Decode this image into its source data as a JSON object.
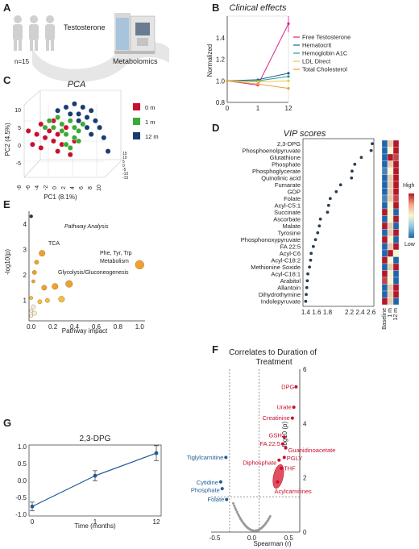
{
  "colors": {
    "red": "#c8102e",
    "blue": "#1f5a96",
    "orange": "#f0a030",
    "green": "#3aaa35",
    "navy": "#1a3c6e",
    "grey": "#9a9a9a",
    "magenta": "#e0218a",
    "teal": "#2a9d8f",
    "yellow": "#e8c840"
  },
  "panel_a": {
    "letter": "A",
    "icon_names": [
      "people-icon",
      "ms-instrument-icon"
    ],
    "n_label": "n=15",
    "treatment_label": "Testosterone",
    "method_label": "Metabolomics"
  },
  "panels": {
    "b": {
      "letter": "B"
    },
    "c": {
      "letter": "C"
    },
    "d": {
      "letter": "D"
    },
    "e": {
      "letter": "E"
    },
    "f": {
      "letter": "F"
    },
    "g": {
      "letter": "G"
    }
  },
  "chart_data": [
    {
      "id": "B",
      "type": "line",
      "title": "Clinical effects",
      "ylabel": "Normalized",
      "xlabel": "",
      "x": [
        0,
        1,
        12
      ],
      "x_ticks": [
        "0",
        "1",
        "12"
      ],
      "ylim": [
        0.8,
        1.6
      ],
      "y_ticks": [
        "0.8",
        "1.0",
        "1.2",
        "1.4"
      ],
      "legend_position": "right",
      "series": [
        {
          "name": "Free Testosterone",
          "color": "#e0218a",
          "values": [
            1.0,
            0.96,
            1.53
          ]
        },
        {
          "name": "Hematocrit",
          "color": "#1f5a96",
          "values": [
            1.0,
            1.01,
            1.07
          ]
        },
        {
          "name": "Hemoglobin A1C",
          "color": "#2a9d8f",
          "values": [
            1.0,
            1.0,
            1.04
          ]
        },
        {
          "name": "LDL Direct",
          "color": "#e8c840",
          "values": [
            1.0,
            0.99,
            1.0
          ]
        },
        {
          "name": "Total Cholesterol",
          "color": "#f0a030",
          "values": [
            1.0,
            0.97,
            0.93
          ]
        }
      ]
    },
    {
      "id": "C",
      "type": "scatter",
      "title": "PCA",
      "xlabel": "PC1 (8.1%)",
      "ylabel": "PC2 (4.5%)",
      "x_ticks": [
        "-8",
        "-6",
        "-4",
        "-2",
        "0",
        "2",
        "4",
        "6",
        "8",
        "10"
      ],
      "y_ticks": [
        "-5",
        "0",
        "5",
        "10"
      ],
      "z_ticks": [
        "-15",
        "-10",
        "-5",
        "0",
        "5",
        "10",
        "15"
      ],
      "legend_position": "right",
      "series": [
        {
          "name": "0 m",
          "color": "#c8102e",
          "points": [
            [
              -9,
              3
            ],
            [
              -7,
              2
            ],
            [
              -6,
              5
            ],
            [
              -5,
              1
            ],
            [
              -4,
              3
            ],
            [
              -3,
              0
            ],
            [
              -3,
              6
            ],
            [
              -2,
              2
            ],
            [
              -1,
              -1
            ],
            [
              -2,
              -3
            ],
            [
              0,
              4
            ],
            [
              1,
              -4
            ],
            [
              -6,
              -2
            ],
            [
              -8,
              -1
            ],
            [
              2,
              0
            ]
          ]
        },
        {
          "name": "1 m",
          "color": "#3aaa35",
          "points": [
            [
              -4,
              6
            ],
            [
              -3,
              4
            ],
            [
              -2,
              7
            ],
            [
              -1,
              5
            ],
            [
              0,
              2
            ],
            [
              1,
              6
            ],
            [
              2,
              4
            ],
            [
              3,
              3
            ],
            [
              -1,
              3
            ],
            [
              0,
              -1
            ],
            [
              2,
              1
            ],
            [
              4,
              5
            ],
            [
              1,
              -2
            ],
            [
              -5,
              4
            ],
            [
              3,
              0
            ]
          ]
        },
        {
          "name": "12 m",
          "color": "#1a3c6e",
          "points": [
            [
              -2,
              9
            ],
            [
              0,
              10
            ],
            [
              2,
              11
            ],
            [
              3,
              8
            ],
            [
              4,
              10
            ],
            [
              5,
              7
            ],
            [
              6,
              9
            ],
            [
              7,
              6
            ],
            [
              5,
              4
            ],
            [
              6,
              2
            ],
            [
              1,
              8
            ],
            [
              8,
              4
            ],
            [
              9,
              1
            ],
            [
              3,
              6
            ],
            [
              10,
              -3
            ]
          ]
        }
      ]
    },
    {
      "id": "D",
      "type": "scatter",
      "title": "VIP scores",
      "xlabel": "",
      "x_ticks": [
        "1.4",
        "1.6",
        "1.8",
        "2.2",
        "2.4",
        "2.6"
      ],
      "xlim": [
        1.35,
        2.65
      ],
      "categories": [
        "2,3-DPG",
        "Phosphoenolpyruvate",
        "Glutathione",
        "Phosphate",
        "Phosphoglycerate",
        "Quinolinic acid",
        "Fumarate",
        "GDP",
        "Folate",
        "Acyl-C5:1",
        "Succinate",
        "Ascorbate",
        "Malate",
        "Tyrosine",
        "Phosphonoxypyruvate",
        "FA 22:5",
        "Acyl-C6",
        "Acyl-C18:2",
        "Methionine Soxide",
        "Acyl-C18:1",
        "Arabitol",
        "Allantoin",
        "Dihydrothymine",
        "Indolepyruvate"
      ],
      "values": [
        2.62,
        2.6,
        2.42,
        2.3,
        2.25,
        2.24,
        2.04,
        1.96,
        1.85,
        1.82,
        1.8,
        1.67,
        1.65,
        1.62,
        1.58,
        1.54,
        1.5,
        1.49,
        1.47,
        1.44,
        1.43,
        1.42,
        1.41,
        1.4
      ],
      "heatmap": {
        "columns": [
          "Baseline",
          "1 m",
          "12 m"
        ],
        "legend_high": "High",
        "legend_low": "Low",
        "levels": [
          [
            0,
            0.6,
            1
          ],
          [
            0,
            0.5,
            1
          ],
          [
            0,
            1,
            0.9
          ],
          [
            0,
            0.6,
            1
          ],
          [
            0.1,
            0.5,
            1
          ],
          [
            0,
            0.6,
            1
          ],
          [
            0,
            0.6,
            1
          ],
          [
            0,
            0.6,
            1
          ],
          [
            0.1,
            0.6,
            0.9
          ],
          [
            0,
            0.5,
            1
          ],
          [
            1,
            0.5,
            0
          ],
          [
            0,
            0.5,
            1
          ],
          [
            1,
            0.6,
            0
          ],
          [
            0,
            0.6,
            1
          ],
          [
            1,
            0.5,
            0
          ],
          [
            0,
            0.6,
            1
          ],
          [
            0,
            1,
            0.5
          ],
          [
            1,
            0.5,
            0
          ],
          [
            0,
            0.6,
            1
          ],
          [
            1,
            0.5,
            0
          ],
          [
            0.9,
            0.5,
            0
          ],
          [
            0,
            0.6,
            1
          ],
          [
            0,
            0.6,
            1
          ],
          [
            1,
            0.6,
            0
          ]
        ]
      }
    },
    {
      "id": "E",
      "type": "scatter",
      "title": "Pathway Analysis",
      "xlabel": "Pathway impact",
      "ylabel": "-log10(p)",
      "x_ticks": [
        "0.0",
        "0.2",
        "0.4",
        "0.6",
        "0.8",
        "1.0"
      ],
      "y_ticks": [
        "1",
        "2",
        "3",
        "4"
      ],
      "xlim": [
        -0.02,
        1.05
      ],
      "ylim": [
        0.2,
        4.5
      ],
      "annotations": [
        "TCA",
        "Phe, Tyr, Trp\nMetabolism",
        "Glycolysis/Gluconeogenesis"
      ],
      "points": [
        {
          "x": 0.0,
          "y": 4.3,
          "size": 2,
          "color": "#333333"
        },
        {
          "x": 0.1,
          "y": 2.85,
          "size": 5,
          "color": "#f0a030"
        },
        {
          "x": 1.0,
          "y": 2.4,
          "size": 8,
          "color": "#f0a030"
        },
        {
          "x": 0.05,
          "y": 2.5,
          "size": 3,
          "color": "#f0a030"
        },
        {
          "x": 0.03,
          "y": 2.1,
          "size": 3,
          "color": "#f0a030"
        },
        {
          "x": 0.35,
          "y": 1.65,
          "size": 6,
          "color": "#f0a030"
        },
        {
          "x": 0.22,
          "y": 1.55,
          "size": 5,
          "color": "#f0a030"
        },
        {
          "x": 0.12,
          "y": 1.5,
          "size": 4,
          "color": "#f0a030"
        },
        {
          "x": 0.02,
          "y": 1.75,
          "size": 2,
          "color": "#f0a030"
        },
        {
          "x": 0.28,
          "y": 1.05,
          "size": 5,
          "color": "#f0c040"
        },
        {
          "x": 0.15,
          "y": 1.0,
          "size": 3,
          "color": "#f0c040"
        },
        {
          "x": 0.08,
          "y": 0.95,
          "size": 3,
          "color": "#f0c040"
        },
        {
          "x": 0.0,
          "y": 1.1,
          "size": 2,
          "color": "#f0c040"
        },
        {
          "x": 0.02,
          "y": 0.75,
          "size": 3,
          "color": "#f5f0e0"
        },
        {
          "x": 0.0,
          "y": 0.6,
          "size": 2,
          "color": "#f5f0e0"
        },
        {
          "x": 0.03,
          "y": 0.5,
          "size": 3,
          "color": "#f5f0e0"
        },
        {
          "x": 0.0,
          "y": 0.4,
          "size": 2,
          "color": "#f5f0e0"
        }
      ]
    },
    {
      "id": "F",
      "type": "scatter",
      "title": "Correlates to Duration of\nTreatment",
      "xlabel": "Spearman (r)",
      "ylabel": "-log10 (p)",
      "x_ticks": [
        "-0.5",
        "0.0",
        "0.5"
      ],
      "y_ticks": [
        "0",
        "2",
        "4",
        "6"
      ],
      "xlim": [
        -0.55,
        0.65
      ],
      "ylim": [
        0,
        6
      ],
      "labeled_points": [
        {
          "label": "DPG",
          "x": 0.6,
          "y": 5.35,
          "color": "#c8102e"
        },
        {
          "label": "Urate",
          "x": 0.57,
          "y": 4.6,
          "color": "#c8102e"
        },
        {
          "label": "Creatinine",
          "x": 0.55,
          "y": 4.2,
          "color": "#c8102e"
        },
        {
          "label": "GSH",
          "x": 0.44,
          "y": 3.5,
          "color": "#c8102e"
        },
        {
          "label": "FA 22:5",
          "x": 0.42,
          "y": 3.25,
          "color": "#c8102e"
        },
        {
          "label": "Guanidinoacetate",
          "x": 0.46,
          "y": 3.1,
          "color": "#c8102e"
        },
        {
          "label": "PGLY",
          "x": 0.44,
          "y": 2.75,
          "color": "#c8102e"
        },
        {
          "label": "Diphosphate",
          "x": 0.37,
          "y": 2.65,
          "color": "#c8102e"
        },
        {
          "label": "THF",
          "x": 0.4,
          "y": 2.35,
          "color": "#c8102e"
        },
        {
          "label": "Acylcarnitines",
          "x": 0.35,
          "y": 1.85,
          "color": "#c8102e"
        },
        {
          "label": "Tiglylcarnitine",
          "x": -0.35,
          "y": 2.75,
          "color": "#1f5a96"
        },
        {
          "label": "Cytidine",
          "x": -0.42,
          "y": 1.85,
          "color": "#1f5a96"
        },
        {
          "label": "Phosphate",
          "x": -0.4,
          "y": 1.6,
          "color": "#1f5a96"
        },
        {
          "label": "Folate",
          "x": -0.34,
          "y": 1.2,
          "color": "#1f5a96"
        }
      ],
      "thresholds": {
        "r_low": -0.3,
        "r_high": 0.1,
        "p_line": 1.3
      }
    },
    {
      "id": "G",
      "type": "line",
      "title": "2,3-DPG",
      "xlabel": "Time (months)",
      "ylabel": "",
      "x": [
        0,
        1,
        12
      ],
      "x_ticks": [
        "0",
        "1",
        "12"
      ],
      "ylim": [
        -1.05,
        1.05
      ],
      "y_ticks": [
        "-1.0",
        "-0.5",
        "0.0",
        "0.5",
        "1.0"
      ],
      "series": [
        {
          "name": "",
          "color": "#1f5a96",
          "values": [
            -0.77,
            0.14,
            0.81
          ],
          "err": [
            0.13,
            0.15,
            0.22
          ]
        }
      ]
    }
  ]
}
